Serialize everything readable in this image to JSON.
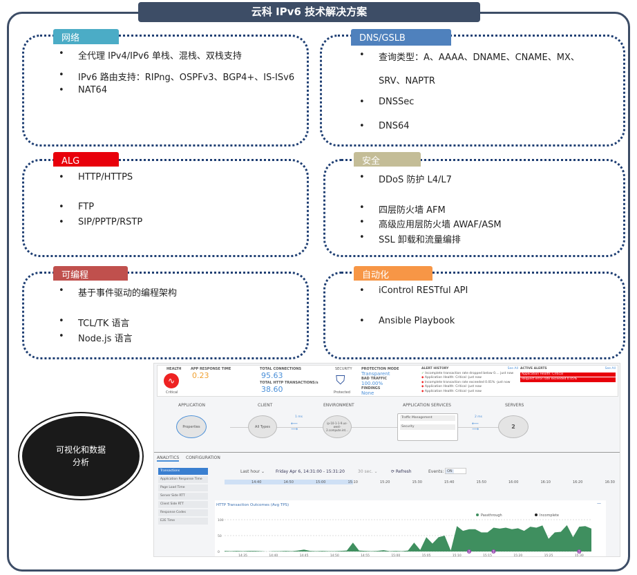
{
  "title": "云科 IPv6 技术解决方案",
  "panels": [
    {
      "label": "网络",
      "color": "#4bacc6",
      "items": [
        "全代理 IPv4/IPv6 单栈、混栈、双栈支持",
        "IPv6 路由支持：RIPng、OSPFv3、BGP4+、IS-ISv6",
        "NAT64"
      ]
    },
    {
      "label": "DNS/GSLB",
      "color": "#4f81bd",
      "items": [
        "查询类型：A、AAAA、DNAME、CNAME、MX、",
        "SRV、NAPTR",
        "DNSSec",
        "DNS64"
      ]
    },
    {
      "label": "ALG",
      "color": "#e8000b",
      "items": [
        "HTTP/HTTPS",
        "FTP",
        "SIP/PPTP/RSTP"
      ]
    },
    {
      "label": "安全",
      "color": "#c4bd97",
      "items": [
        "DDoS 防护 L4/L7",
        "四层防火墙 AFM",
        "高级应用层防火墙 AWAF/ASM",
        "SSL 卸载和流量编排"
      ]
    },
    {
      "label": "可编程",
      "color": "#c0504d",
      "items": [
        "基于事件驱动的编程架构",
        "TCL/TK 语言",
        "Node.js 语言"
      ]
    },
    {
      "label": "自动化",
      "color": "#f79646",
      "items": [
        "iControl RESTful API",
        "Ansible Playbook"
      ]
    }
  ],
  "visual_label": "可视化和数据分析",
  "dashboard": {
    "health": {
      "label": "HEALTH",
      "status": "Critical"
    },
    "app_response": {
      "label": "APP RESPONSE TIME",
      "value": "0.23"
    },
    "connections": {
      "label": "TOTAL CONNECTIONS",
      "value": "95.63",
      "http_label": "TOTAL HTTP TRANSACTIONS/s",
      "http_value": "38.60"
    },
    "security": {
      "label": "SECURITY",
      "status": "Protected"
    },
    "protection": {
      "mode_label": "PROTECTION MODE",
      "mode": "Transparent",
      "bad_label": "BAD TRAFFIC",
      "bad": "100.00%",
      "findings_label": "FINDINGS",
      "findings": "None"
    },
    "alert_history": {
      "label": "ALERT HISTORY",
      "see_all": "See All",
      "items": [
        "Incomplete transaction rate dropped below 0.... just now",
        "Application Health: Critical -just now",
        "Incomplete transaction rate exceeded 0.01% -just now",
        "Application Health: Critical -just now",
        "Application Health: Critical -just now"
      ]
    },
    "active_alerts": {
      "label": "ACTIVE ALERTS",
      "see_all": "See All",
      "items": [
        "Application Health: Critical",
        "Request error rate exceeded 0.05%"
      ]
    },
    "topology": {
      "application": "APPLICATION",
      "app_node": "Properties",
      "client": "CLIENT",
      "client_node": "All Types",
      "client_latency": "1 ms",
      "environment": "ENVIRONMENT",
      "env_node": "ip-10-1-1-9.us-west-2.compute.int...",
      "services": "APPLICATION SERVICES",
      "svc_items": [
        "Traffic Management",
        "Security"
      ],
      "svc_latency": "2 ms",
      "servers": "SERVERS",
      "server_count": "2"
    },
    "tabs": [
      "ANALYTICS",
      "CONFIGURATION"
    ],
    "side_items": [
      "Transactions",
      "Application Response Time",
      "Page Load Time",
      "Server Side RTT",
      "Client Side RTT",
      "Response Codes",
      "E2E Time"
    ],
    "range": "Last hour ⌄",
    "period": "Friday Apr 6, 14:31:00 - 15:31:20",
    "interval": "30 sec. ⌄",
    "refresh": "⟳ Refresh",
    "events_label": "Events:",
    "events_value": "ON",
    "timeline": [
      "14:40",
      "14:50",
      "15:00",
      "15:10",
      "15:20",
      "15:30",
      "15:40",
      "15:50",
      "16:00",
      "16:10",
      "16:20",
      "16:30"
    ]
  },
  "chart_data": {
    "type": "area",
    "title": "HTTP Transaction Outcomes (Avg TPS)",
    "legend": [
      "Passthrough",
      "Incomplete"
    ],
    "legend_placement": "top-right",
    "ylim": [
      0,
      100
    ],
    "yticks": [
      "0",
      "50",
      "100"
    ],
    "xticks": [
      "14:35",
      "14:40",
      "14:45",
      "14:50",
      "14:55",
      "15:00",
      "15:05",
      "15:10",
      "15:15",
      "15:20",
      "15:25",
      "15:30"
    ],
    "x": [
      "14:32",
      "14:33",
      "14:34",
      "14:35",
      "14:36",
      "14:37",
      "14:38",
      "14:39",
      "14:40",
      "14:41",
      "14:42",
      "14:43",
      "14:44",
      "14:45",
      "14:46",
      "14:47",
      "14:48",
      "14:49",
      "14:50",
      "14:51",
      "14:52",
      "14:53",
      "14:54",
      "14:55",
      "14:56",
      "14:57",
      "14:58",
      "14:59",
      "15:00",
      "15:01",
      "15:02",
      "15:03",
      "15:04",
      "15:05",
      "15:06",
      "15:07",
      "15:08",
      "15:09",
      "15:10",
      "15:11",
      "15:12",
      "15:13",
      "15:14",
      "15:15",
      "15:16",
      "15:17",
      "15:18",
      "15:19",
      "15:20",
      "15:21",
      "15:22",
      "15:23",
      "15:24",
      "15:25",
      "15:26",
      "15:27",
      "15:28",
      "15:29",
      "15:30",
      "15:31",
      "15:32"
    ],
    "series": [
      {
        "name": "Passthrough",
        "color": "#3f8f5f",
        "values": [
          2,
          1,
          2,
          1,
          2,
          2,
          1,
          0,
          1,
          1,
          2,
          1,
          3,
          6,
          2,
          1,
          2,
          1,
          1,
          2,
          3,
          28,
          3,
          2,
          1,
          2,
          4,
          1,
          2,
          1,
          3,
          28,
          5,
          45,
          25,
          45,
          50,
          3,
          80,
          65,
          70,
          70,
          60,
          60,
          75,
          72,
          75,
          70,
          73,
          65,
          78,
          75,
          82,
          40,
          60,
          62,
          83,
          45,
          78,
          80,
          72
        ]
      }
    ],
    "events": [
      {
        "x": "15:12",
        "count": "2"
      },
      {
        "x": "15:16",
        "count": "2"
      },
      {
        "x": "15:30",
        "count": "2"
      }
    ],
    "grid": true
  }
}
